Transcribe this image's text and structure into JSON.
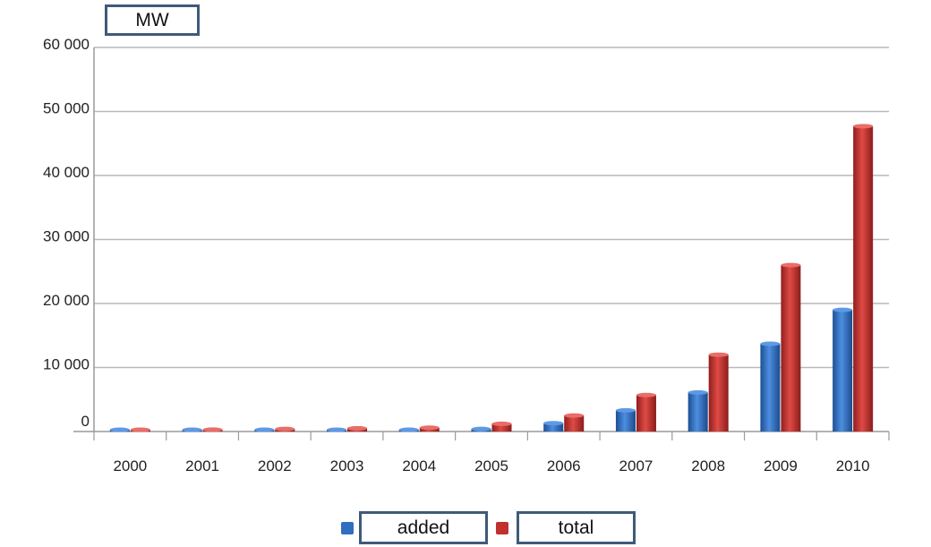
{
  "unit_label": "MW",
  "colors": {
    "added": "#2f6fc0",
    "total": "#c0302e"
  },
  "chart_data": {
    "type": "bar",
    "categories": [
      "2000",
      "2001",
      "2002",
      "2003",
      "2004",
      "2005",
      "2006",
      "2007",
      "2008",
      "2009",
      "2010"
    ],
    "series": [
      {
        "name": "added",
        "values": [
          0,
          50,
          100,
          100,
          100,
          400,
          1300,
          3300,
          6100,
          13700,
          19000
        ]
      },
      {
        "name": "total",
        "values": [
          200,
          300,
          400,
          500,
          600,
          1200,
          2500,
          5700,
          12000,
          26000,
          47700
        ]
      }
    ],
    "ylim": [
      0,
      60000
    ],
    "yticks": [
      0,
      10000,
      20000,
      30000,
      40000,
      50000,
      60000
    ],
    "ytick_labels": [
      "0",
      "10 000",
      "20 000",
      "30 000",
      "40 000",
      "50 000",
      "60 000"
    ],
    "grid": true,
    "legend": "bottom"
  }
}
